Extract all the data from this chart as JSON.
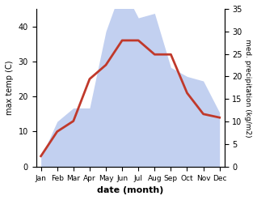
{
  "months": [
    "Jan",
    "Feb",
    "Mar",
    "Apr",
    "May",
    "Jun",
    "Jul",
    "Aug",
    "Sep",
    "Oct",
    "Nov",
    "Dec"
  ],
  "temp": [
    3,
    10,
    13,
    25,
    29,
    36,
    36,
    32,
    32,
    21,
    15,
    14
  ],
  "precip": [
    2,
    10,
    13,
    13,
    30,
    40,
    33,
    34,
    22,
    20,
    19,
    12
  ],
  "temp_color": "#c0392b",
  "precip_fill_color": "#b8c8ee",
  "precip_fill_alpha": 0.85,
  "temp_ylim": [
    0,
    45
  ],
  "precip_ylim": [
    0,
    35
  ],
  "temp_yticks": [
    0,
    10,
    20,
    30,
    40
  ],
  "precip_yticks": [
    0,
    5,
    10,
    15,
    20,
    25,
    30,
    35
  ],
  "ylabel_left": "max temp (C)",
  "ylabel_right": "med. precipitation (kg/m2)",
  "xlabel": "date (month)",
  "background_color": "#ffffff"
}
